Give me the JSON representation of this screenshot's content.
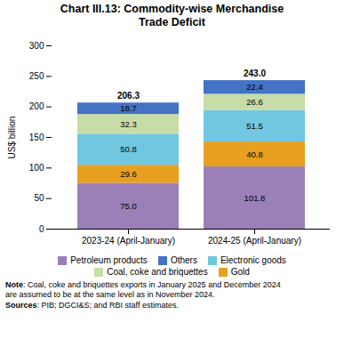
{
  "chart_data": {
    "type": "bar",
    "title": "Chart III.13: Commodity-wise Merchandise\nTrade Deficit",
    "categories": [
      "2023-24 (April-January)",
      "2024-25 (April-January)"
    ],
    "series": [
      {
        "name": "Petroleum products",
        "color": "#9b80b8",
        "values": [
          75.0,
          101.8
        ],
        "value_labels": [
          "75.0",
          "101.8"
        ]
      },
      {
        "name": "Gold",
        "color": "#e8a020",
        "values": [
          29.6,
          40.8
        ],
        "value_labels": [
          "29.6",
          "40.8"
        ]
      },
      {
        "name": "Electronic goods",
        "color": "#72c7e0",
        "values": [
          50.8,
          51.5
        ],
        "value_labels": [
          "50.8",
          "51.5"
        ]
      },
      {
        "name": "Coal, coke and briquettes",
        "color": "#c8dca8",
        "values": [
          32.3,
          26.6
        ],
        "value_labels": [
          "32.3",
          "26.6"
        ]
      },
      {
        "name": "Others",
        "color": "#4472c4",
        "values": [
          18.7,
          22.4
        ],
        "value_labels": [
          "18.7",
          "22.4"
        ]
      }
    ],
    "totals": {
      "values": [
        206.3,
        243.0
      ],
      "value_labels": [
        "206.3",
        "243.0"
      ]
    },
    "ylabel": "US$ billion",
    "ylim": [
      0,
      300
    ],
    "yticks": [
      0,
      50,
      100,
      150,
      200,
      250,
      300
    ],
    "stacked": true,
    "data_labels": true,
    "grid": false,
    "legend": "bottom",
    "legend_order": [
      "Petroleum products",
      "Others",
      "Electronic goods",
      "Coal, coke and briquettes",
      "Gold"
    ],
    "notes": [
      {
        "bold": "Note",
        "text": ": Coal, coke and briquettes exports in January 2025 and December 2024\nare assumed to be at the same level as in November 2024."
      },
      {
        "bold": "Sources",
        "text": ": PIB; DGCI&S; and RBI staff estimates."
      }
    ]
  }
}
